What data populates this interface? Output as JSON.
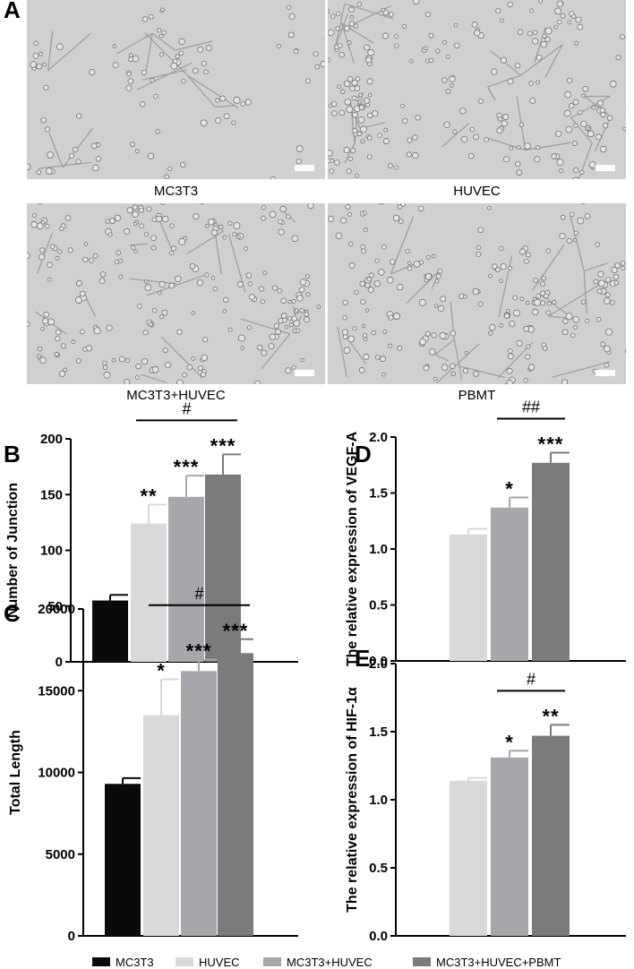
{
  "panels": {
    "a_letter": "A",
    "images": [
      {
        "label": "MC3T3"
      },
      {
        "label": "HUVEC"
      },
      {
        "label": "MC3T3+HUVEC"
      },
      {
        "label": "PBMT"
      }
    ]
  },
  "legend": [
    {
      "label": "MC3T3",
      "color": "#0a0a0a"
    },
    {
      "label": "HUVEC",
      "color": "#d9d9d9"
    },
    {
      "label": "MC3T3+HUVEC",
      "color": "#a6a6ab"
    },
    {
      "label": "MC3T3+HUVEC+PBMT",
      "color": "#7b7b7b"
    }
  ],
  "chart_data": [
    {
      "panel": "B",
      "type": "bar",
      "ylabel": "Number of Junction",
      "ylim": [
        0,
        200
      ],
      "yticks": [
        "0",
        "50",
        "100",
        "150",
        "200"
      ],
      "categories": [
        "MC3T3",
        "HUVEC",
        "MC3T3+HUVEC",
        "MC3T3+HUVEC+PBMT"
      ],
      "values": [
        55,
        124,
        148,
        168
      ],
      "errors": [
        5,
        17,
        19,
        18
      ],
      "significance": [
        "",
        "**",
        "***",
        "***"
      ],
      "bracket": {
        "from": 1,
        "to": 3,
        "label": "#"
      }
    },
    {
      "panel": "C",
      "type": "bar",
      "ylabel": "Total Length",
      "ylim": [
        0,
        20000
      ],
      "yticks": [
        "0",
        "5000",
        "10000",
        "15000",
        "20000"
      ],
      "categories": [
        "MC3T3",
        "HUVEC",
        "MC3T3+HUVEC",
        "MC3T3+HUVEC+PBMT"
      ],
      "values": [
        9300,
        13500,
        16200,
        17300
      ],
      "errors": [
        350,
        2200,
        700,
        850
      ],
      "significance": [
        "",
        "*",
        "***",
        "***"
      ],
      "bracket": {
        "from": 1,
        "to": 3,
        "label": "#"
      }
    },
    {
      "panel": "D",
      "type": "bar",
      "ylabel": "The relative expression of VEGF-A",
      "ylim": [
        0,
        2.0
      ],
      "yticks": [
        "0.0",
        "0.5",
        "1.0",
        "1.5",
        "2.0"
      ],
      "categories": [
        "HUVEC",
        "MC3T3+HUVEC",
        "MC3T3+HUVEC+PBMT"
      ],
      "values": [
        1.13,
        1.37,
        1.77
      ],
      "errors": [
        0.05,
        0.09,
        0.09
      ],
      "significance": [
        "",
        "*",
        "***"
      ],
      "bracket": {
        "from": 1,
        "to": 2,
        "label": "##"
      }
    },
    {
      "panel": "E",
      "type": "bar",
      "ylabel": "The relative expression of HIF-1α",
      "ylim": [
        0,
        2.0
      ],
      "yticks": [
        "0.0",
        "0.5",
        "1.0",
        "1.5",
        "2.0"
      ],
      "categories": [
        "HUVEC",
        "MC3T3+HUVEC",
        "MC3T3+HUVEC+PBMT"
      ],
      "values": [
        1.14,
        1.31,
        1.47
      ],
      "errors": [
        0.02,
        0.05,
        0.08
      ],
      "significance": [
        "",
        "*",
        "**"
      ],
      "bracket": {
        "from": 1,
        "to": 2,
        "label": "#"
      }
    }
  ]
}
